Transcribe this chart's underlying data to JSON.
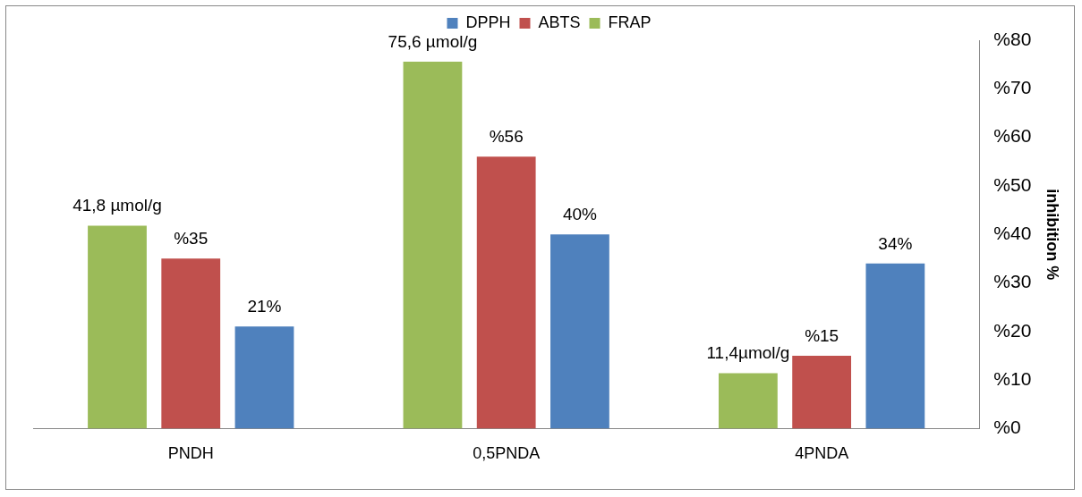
{
  "chart_data": {
    "type": "bar",
    "categories": [
      "PNDH",
      "0,5PNDA",
      "4PNDA"
    ],
    "series": [
      {
        "name": "FRAP",
        "color": "#9bbb59",
        "values": [
          41.8,
          75.6,
          11.4
        ],
        "value_labels": [
          "41,8 µmol/g",
          "75,6 µmol/g",
          "11,4µmol/g"
        ]
      },
      {
        "name": "ABTS",
        "color": "#c0504d",
        "values": [
          35,
          56,
          15
        ],
        "value_labels": [
          "%35",
          "%56",
          "%15"
        ]
      },
      {
        "name": "DPPH",
        "color": "#4f81bd",
        "values": [
          21,
          40,
          34
        ],
        "value_labels": [
          "21%",
          "40%",
          "34%"
        ]
      }
    ],
    "ylabel": "inhibition %",
    "ylim": [
      0,
      80
    ],
    "yticks": [
      {
        "value": 0,
        "label": "%0"
      },
      {
        "value": 10,
        "label": "%10"
      },
      {
        "value": 20,
        "label": "%20"
      },
      {
        "value": 30,
        "label": "%30"
      },
      {
        "value": 40,
        "label": "%40"
      },
      {
        "value": 50,
        "label": "%50"
      },
      {
        "value": 60,
        "label": "%60"
      },
      {
        "value": 70,
        "label": "%70"
      },
      {
        "value": 80,
        "label": "%80"
      }
    ],
    "legend": "top",
    "grid": false
  }
}
